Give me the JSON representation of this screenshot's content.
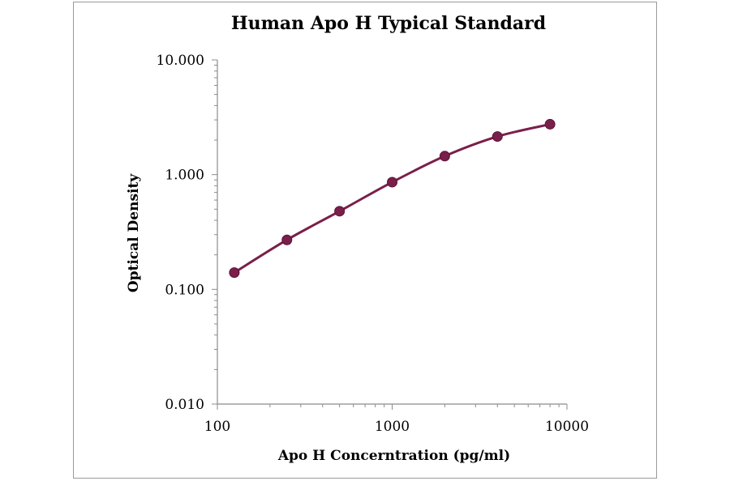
{
  "chart_data": {
    "type": "line",
    "title": "Human Apo H Typical Standard",
    "xlabel": "Apo H Concerntration (pg/ml)",
    "ylabel": "Optical Density",
    "x_scale": "log",
    "y_scale": "log",
    "xlim": [
      100,
      10000
    ],
    "ylim": [
      0.01,
      10
    ],
    "x_ticks": [
      {
        "value": 100,
        "label": "100"
      },
      {
        "value": 1000,
        "label": "1000"
      },
      {
        "value": 10000,
        "label": "10000"
      }
    ],
    "y_ticks": [
      {
        "value": 0.01,
        "label": "0.010"
      },
      {
        "value": 0.1,
        "label": "0.100"
      },
      {
        "value": 1,
        "label": "1.000"
      },
      {
        "value": 10,
        "label": "10.000"
      }
    ],
    "grid": false,
    "legend": "none",
    "series": [
      {
        "color": "#7a1f4a",
        "x": [
          125,
          250,
          500,
          1000,
          2000,
          4000,
          8000
        ],
        "y": [
          0.14,
          0.27,
          0.48,
          0.86,
          1.45,
          2.15,
          2.75
        ]
      }
    ]
  }
}
